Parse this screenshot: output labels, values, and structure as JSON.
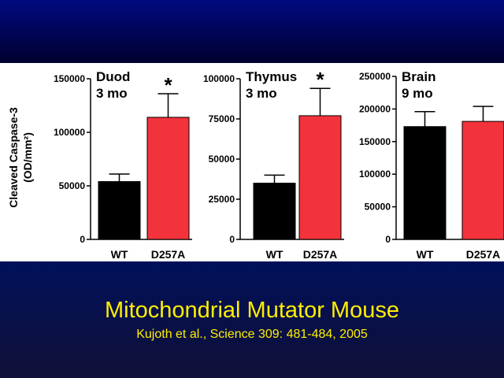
{
  "slide": {
    "ylabel": [
      "Cleaved  Caspase-3",
      "(OD/mm²)"
    ],
    "footer_title": "Mitochondrial Mutator Mouse",
    "footer_citation": "Kujoth et al., Science 309: 481-484, 2005"
  },
  "chart_data": [
    {
      "type": "bar",
      "title": "Duod",
      "subtitle": "3 mo",
      "categories": [
        "WT",
        "D257A"
      ],
      "values": [
        54000,
        114000
      ],
      "errors": [
        7000,
        22000
      ],
      "colors": [
        "#000000",
        "#f2333b"
      ],
      "annotation": "*",
      "ylim": [
        0,
        150000
      ],
      "yticks": [
        0,
        50000,
        100000,
        150000
      ]
    },
    {
      "type": "bar",
      "title": "Thymus",
      "subtitle": "3 mo",
      "categories": [
        "WT",
        "D257A"
      ],
      "values": [
        35000,
        77000
      ],
      "errors": [
        5000,
        17000
      ],
      "colors": [
        "#000000",
        "#f2333b"
      ],
      "annotation": "*",
      "ylim": [
        0,
        100000
      ],
      "yticks": [
        0,
        25000,
        50000,
        75000,
        100000
      ]
    },
    {
      "type": "bar",
      "title": "Brain",
      "subtitle": "9 mo",
      "categories": [
        "WT",
        "D257A"
      ],
      "values": [
        173000,
        181000
      ],
      "errors": [
        23000,
        23000
      ],
      "colors": [
        "#000000",
        "#f2333b"
      ],
      "ylim": [
        0,
        250000
      ],
      "yticks": [
        0,
        50000,
        100000,
        150000,
        200000,
        250000
      ]
    }
  ]
}
